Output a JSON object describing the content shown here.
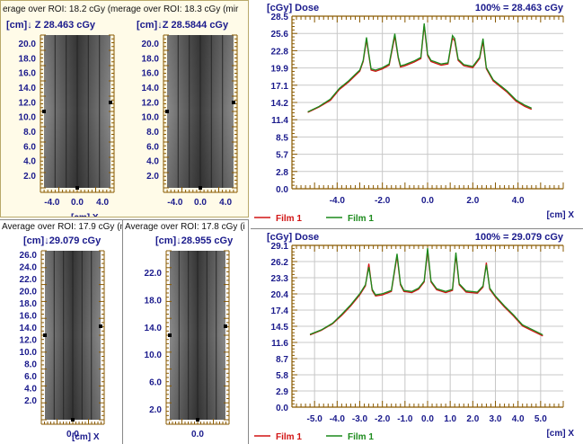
{
  "colors": {
    "axis": "#1a1a8c",
    "tick": "#8a5a00",
    "film_red": "#d21414",
    "film_green": "#1b8a1b",
    "grid": "#c8c8c8",
    "panel_bg_top_left": "#fffbe8"
  },
  "top_left": {
    "header": "erage over ROI: 18.2 cGy  (merage over ROI: 18.3 cGy  (mir",
    "film_a": {
      "title": "[cm]↓ Z 28.463 cGy",
      "yticks": [
        "20.0",
        "18.0",
        "16.0",
        "14.0",
        "12.0",
        "10.0",
        "8.0",
        "6.0",
        "4.0",
        "2.0"
      ],
      "xticks": [
        "-4.0",
        "0.0",
        "4.0"
      ],
      "xunit": "[cm] X"
    },
    "film_b": {
      "title": "[cm]↓Z 28.5844 cGy",
      "yticks": [
        "20.0",
        "18.0",
        "16.0",
        "14.0",
        "12.0",
        "10.0",
        "8.0",
        "6.0",
        "4.0",
        "2.0"
      ],
      "xticks": [
        "-4.0",
        "0.0",
        "4.0"
      ]
    }
  },
  "bottom_left": {
    "header_a": "Average over ROI: 17.9 cGy  (m",
    "header_b": "Average over ROI: 17.8 cGy  (i",
    "film_a": {
      "title": "[cm]↓29.079 cGy",
      "yticks": [
        "26.0",
        "24.0",
        "22.0",
        "20.0",
        "18.0",
        "16.0",
        "14.0",
        "12.0",
        "10.0",
        "8.0",
        "6.0",
        "4.0",
        "2.0"
      ],
      "xticks": [
        "0.0"
      ],
      "xunit": "[cm] X"
    },
    "film_b": {
      "title": "[cm]↓28.955 cGy",
      "yticks": [
        "22.0",
        "18.0",
        "14.0",
        "10.0",
        "6.0",
        "2.0"
      ],
      "xticks": [
        "0.0"
      ]
    }
  },
  "chart_data": [
    {
      "type": "line",
      "title": "100% = 28.463 cGy",
      "ylabel": "[cGy] Dose",
      "xlabel": "[cm] X",
      "yticks": [
        "28.5",
        "25.6",
        "22.8",
        "19.9",
        "17.1",
        "14.2",
        "11.4",
        "8.5",
        "5.7",
        "2.8",
        "0.0"
      ],
      "ylim": [
        0,
        28.5
      ],
      "xlim": [
        -6,
        6
      ],
      "xticks": [
        "-4.0",
        "-2.0",
        "0.0",
        "2.0",
        "4.0"
      ],
      "xtick_values": [
        -4,
        -2,
        0,
        2,
        4
      ],
      "grid": true,
      "legend": [
        "Film 1",
        "Film 1"
      ],
      "series": [
        {
          "name": "Film 1",
          "color": "#d21414",
          "x": [
            -5.3,
            -4.8,
            -4.3,
            -3.9,
            -3.5,
            -3.2,
            -3.0,
            -2.85,
            -2.7,
            -2.6,
            -2.5,
            -2.3,
            -2.0,
            -1.7,
            -1.45,
            -1.3,
            -1.2,
            -1.0,
            -0.6,
            -0.3,
            -0.15,
            0.0,
            0.15,
            0.3,
            0.6,
            0.9,
            1.1,
            1.2,
            1.35,
            1.6,
            2.0,
            2.3,
            2.45,
            2.6,
            2.75,
            2.9,
            3.1,
            3.5,
            3.9,
            4.3,
            4.6
          ],
          "y": [
            12.6,
            13.5,
            14.6,
            16.4,
            17.6,
            18.7,
            19.4,
            21.0,
            24.6,
            22.0,
            19.6,
            19.4,
            19.8,
            20.4,
            25.2,
            21.6,
            20.1,
            20.3,
            20.9,
            21.5,
            27.0,
            22.0,
            21.0,
            20.8,
            20.4,
            20.6,
            24.9,
            24.4,
            21.2,
            20.3,
            20.0,
            21.5,
            24.3,
            19.8,
            18.8,
            17.8,
            17.2,
            16.0,
            14.5,
            13.6,
            13.1
          ]
        },
        {
          "name": "Film 1",
          "color": "#1b8a1b",
          "x": [
            -5.3,
            -4.8,
            -4.3,
            -3.9,
            -3.5,
            -3.2,
            -3.0,
            -2.85,
            -2.7,
            -2.6,
            -2.5,
            -2.3,
            -2.0,
            -1.7,
            -1.45,
            -1.3,
            -1.2,
            -1.0,
            -0.6,
            -0.3,
            -0.15,
            0.0,
            0.15,
            0.3,
            0.6,
            0.9,
            1.1,
            1.2,
            1.35,
            1.6,
            2.0,
            2.3,
            2.45,
            2.6,
            2.75,
            2.9,
            3.1,
            3.5,
            3.9,
            4.3,
            4.6
          ],
          "y": [
            12.7,
            13.6,
            14.8,
            16.6,
            17.8,
            18.9,
            19.6,
            21.2,
            25.0,
            22.2,
            19.8,
            19.6,
            20.0,
            20.6,
            25.6,
            21.8,
            20.3,
            20.5,
            21.1,
            21.7,
            27.3,
            22.2,
            21.2,
            21.0,
            20.6,
            20.8,
            25.3,
            24.8,
            21.4,
            20.5,
            20.2,
            21.7,
            24.8,
            20.0,
            19.0,
            18.0,
            17.4,
            16.2,
            14.7,
            13.8,
            13.3
          ]
        }
      ]
    },
    {
      "type": "line",
      "title": "100% = 29.079 cGy",
      "ylabel": "[cGy] Dose",
      "xlabel": "[cm] X",
      "yticks": [
        "29.1",
        "26.2",
        "23.3",
        "20.4",
        "17.4",
        "14.5",
        "11.6",
        "8.7",
        "5.8",
        "2.9",
        "0.0"
      ],
      "ylim": [
        0,
        29.1
      ],
      "xlim": [
        -6,
        6
      ],
      "xticks": [
        "-5.0",
        "-4.0",
        "-3.0",
        "-2.0",
        "-1.0",
        "0.0",
        "1.0",
        "2.0",
        "3.0",
        "4.0",
        "5.0"
      ],
      "xtick_values": [
        -5,
        -4,
        -3,
        -2,
        -1,
        0,
        1,
        2,
        3,
        4,
        5
      ],
      "grid": true,
      "legend": [
        "Film 1",
        "Film 1"
      ],
      "series": [
        {
          "name": "Film 1",
          "color": "#d21414",
          "x": [
            -5.2,
            -4.7,
            -4.2,
            -3.8,
            -3.4,
            -3.0,
            -2.75,
            -2.6,
            -2.45,
            -2.3,
            -2.0,
            -1.6,
            -1.35,
            -1.2,
            -1.05,
            -0.7,
            -0.4,
            -0.15,
            0.0,
            0.15,
            0.4,
            0.8,
            1.1,
            1.25,
            1.4,
            1.7,
            2.2,
            2.45,
            2.6,
            2.75,
            3.0,
            3.4,
            3.8,
            4.2,
            4.7,
            5.1
          ],
          "y": [
            13.0,
            13.8,
            15.0,
            16.5,
            18.2,
            20.2,
            21.8,
            25.8,
            21.0,
            20.0,
            20.2,
            20.8,
            27.2,
            22.0,
            20.8,
            20.6,
            21.2,
            22.5,
            28.2,
            22.5,
            21.1,
            20.6,
            21.0,
            27.4,
            22.0,
            20.7,
            20.5,
            21.6,
            26.0,
            21.2,
            19.8,
            18.0,
            16.4,
            14.6,
            13.6,
            12.8
          ]
        },
        {
          "name": "Film 1",
          "color": "#1b8a1b",
          "x": [
            -5.2,
            -4.7,
            -4.2,
            -3.8,
            -3.4,
            -3.0,
            -2.75,
            -2.6,
            -2.45,
            -2.3,
            -2.0,
            -1.6,
            -1.35,
            -1.2,
            -1.05,
            -0.7,
            -0.4,
            -0.15,
            0.0,
            0.15,
            0.4,
            0.8,
            1.1,
            1.25,
            1.4,
            1.7,
            2.2,
            2.45,
            2.6,
            2.75,
            3.0,
            3.4,
            3.8,
            4.2,
            4.7,
            5.1
          ],
          "y": [
            13.1,
            13.9,
            15.1,
            16.7,
            18.4,
            20.4,
            22.0,
            25.2,
            21.2,
            20.2,
            20.4,
            21.0,
            27.6,
            22.2,
            21.0,
            20.8,
            21.4,
            22.7,
            28.6,
            22.7,
            21.3,
            20.8,
            21.2,
            27.8,
            22.2,
            20.9,
            20.7,
            21.8,
            25.6,
            21.4,
            20.0,
            18.2,
            16.6,
            14.8,
            13.8,
            13.0
          ]
        }
      ]
    }
  ]
}
